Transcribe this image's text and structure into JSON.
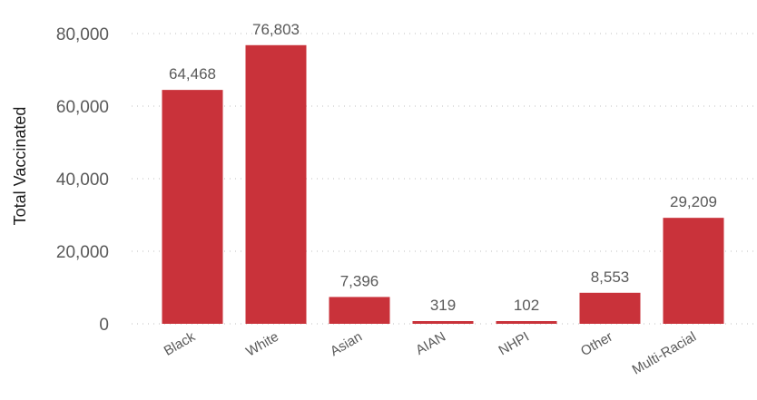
{
  "chart_data": {
    "type": "bar",
    "title": "",
    "xlabel": "",
    "ylabel": "Total Vaccinated",
    "categories": [
      "Black",
      "White",
      "Asian",
      "AIAN",
      "NHPI",
      "Other",
      "Multi-Racial"
    ],
    "values": [
      64468,
      76803,
      7396,
      319,
      102,
      8553,
      29209
    ],
    "data_labels": [
      "64,468",
      "76,803",
      "7,396",
      "319",
      "102",
      "8,553",
      "29,209"
    ],
    "yticks": [
      0,
      20000,
      40000,
      60000,
      80000
    ],
    "ytick_labels": [
      "0",
      "20,000",
      "40,000",
      "60,000",
      "80,000"
    ],
    "ylim": [
      0,
      80000
    ],
    "grid": true,
    "legend": "none",
    "bar_color": "#C9323A"
  }
}
